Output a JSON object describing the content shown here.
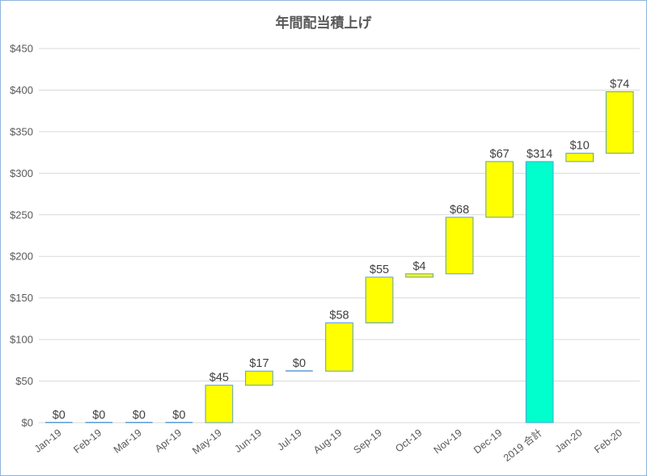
{
  "chart_data": {
    "type": "bar",
    "subtype": "waterfall",
    "title": "年間配当積上げ",
    "xlabel": "",
    "ylabel": "",
    "ylim": [
      0,
      450
    ],
    "yticks": [
      0,
      50,
      100,
      150,
      200,
      250,
      300,
      350,
      400,
      450
    ],
    "ytick_labels": [
      "$0",
      "$50",
      "$100",
      "$150",
      "$200",
      "$250",
      "$300",
      "$350",
      "$400",
      "$450"
    ],
    "grid": true,
    "legend": "none",
    "colors": {
      "increase": "#ffff00",
      "total": "#00ffcc",
      "border": "#5b9bd5",
      "grid": "#d9d9d9"
    },
    "categories": [
      "Jan-19",
      "Feb-19",
      "Mar-19",
      "Apr-19",
      "May-19",
      "Jun-19",
      "Jul-19",
      "Aug-19",
      "Sep-19",
      "Oct-19",
      "Nov-19",
      "Dec-19",
      "2019 合計",
      "Jan-20",
      "Feb-20"
    ],
    "values": [
      0,
      0,
      0,
      0,
      45,
      17,
      0,
      58,
      55,
      4,
      68,
      67,
      314,
      10,
      74
    ],
    "is_total": [
      false,
      false,
      false,
      false,
      false,
      false,
      false,
      false,
      false,
      false,
      false,
      false,
      true,
      false,
      false
    ],
    "data_labels": [
      "$0",
      "$0",
      "$0",
      "$0",
      "$45",
      "$17",
      "$0",
      "$58",
      "$55",
      "$4",
      "$68",
      "$67",
      "$314",
      "$10",
      "$74"
    ]
  }
}
